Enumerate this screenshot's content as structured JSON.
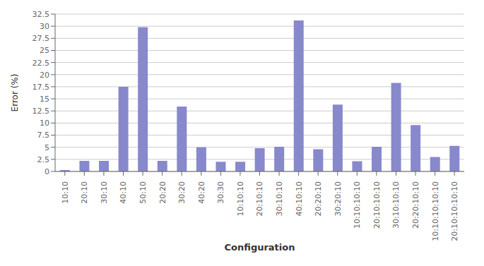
{
  "chart_data": {
    "type": "bar",
    "categories": [
      "10:10",
      "20:10",
      "30:10",
      "40:10",
      "50:10",
      "20:20",
      "30:20",
      "40:20",
      "30:30",
      "10:10:10",
      "20:10:10",
      "30:10:10",
      "40:10:10",
      "20:20:10",
      "30:20:10",
      "10:10:10:10",
      "20:10:10:10",
      "30:10:10:10",
      "20:20:10:10",
      "10:10:10:10:10",
      "20:10:10:10:10"
    ],
    "values": [
      0.3,
      2.2,
      2.2,
      17.5,
      29.8,
      2.2,
      13.4,
      5.0,
      2.0,
      2.0,
      4.8,
      5.1,
      31.2,
      4.6,
      13.8,
      2.1,
      5.1,
      18.3,
      9.6,
      3.0,
      5.3
    ],
    "color": "#8888cc",
    "xlabel": "Configuration",
    "ylabel": "Error (%)",
    "ylim": [
      0,
      32.5
    ],
    "yticks": [
      0,
      2.5,
      5,
      7.5,
      10,
      12.5,
      15,
      17.5,
      20,
      22.5,
      25,
      27.5,
      30,
      32.5
    ],
    "grid": true
  }
}
